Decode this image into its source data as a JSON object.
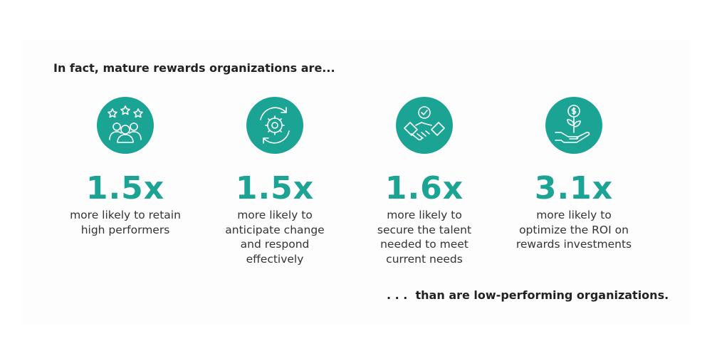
{
  "header": {
    "title": "In fact, mature rewards organizations are..."
  },
  "items": [
    {
      "stat": "1.5x",
      "lines": [
        "more likely to retain",
        "high performers"
      ]
    },
    {
      "stat": "1.5x",
      "lines": [
        "more likely to",
        "anticipate change",
        "and respond",
        "effectively"
      ]
    },
    {
      "stat": "1.6x",
      "lines": [
        "more likely to",
        "secure the talent",
        "needed to meet",
        "current needs"
      ]
    },
    {
      "stat": "3.1x",
      "lines": [
        "more likely to",
        "optimize the ROI on",
        "rewards investments"
      ]
    }
  ],
  "footer": {
    "text": ". . .  than are low-performing organizations."
  }
}
